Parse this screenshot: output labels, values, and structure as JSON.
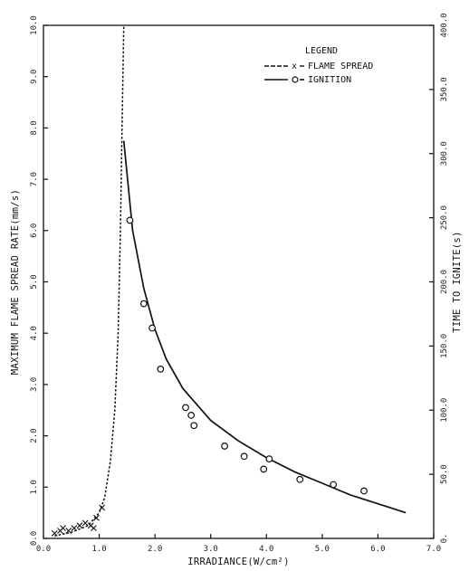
{
  "chart_data": {
    "type": "line",
    "xlabel": "IRRADIANCE(W/cm²)",
    "ylabel": "MAXIMUM FLAME SPREAD RATE(mm/s)",
    "y2label": "TIME TO IGNITE(s)",
    "xlim": [
      0,
      7.0
    ],
    "ylim": [
      0,
      10.0
    ],
    "y2lim": [
      0,
      400.0
    ],
    "x_ticks": [
      "0.0",
      "1.0",
      "2.0",
      "3.0",
      "4.0",
      "5.0",
      "6.0",
      "7.0"
    ],
    "y_ticks": [
      "0.0",
      "1.0",
      "2.0",
      "3.0",
      "4.0",
      "5.0",
      "6.0",
      "7.0",
      "8.0",
      "9.0",
      "10.0"
    ],
    "y2_ticks": [
      "0.",
      "50.0",
      "100.0",
      "150.0",
      "200.0",
      "250.0",
      "300.0",
      "350.0",
      "400.0"
    ],
    "grid": false,
    "legend": {
      "title": "LEGEND",
      "placement": "top-right",
      "entries": [
        "FLAME SPREAD",
        "IGNITION"
      ]
    },
    "series": [
      {
        "name": "FLAME SPREAD",
        "axis": "left",
        "marker": "x",
        "style": "dashed",
        "points": [
          {
            "x": 0.2,
            "y": 0.1
          },
          {
            "x": 0.3,
            "y": 0.15
          },
          {
            "x": 0.35,
            "y": 0.2
          },
          {
            "x": 0.45,
            "y": 0.15
          },
          {
            "x": 0.55,
            "y": 0.2
          },
          {
            "x": 0.65,
            "y": 0.25
          },
          {
            "x": 0.75,
            "y": 0.3
          },
          {
            "x": 0.85,
            "y": 0.25
          },
          {
            "x": 0.9,
            "y": 0.2
          },
          {
            "x": 0.95,
            "y": 0.4
          },
          {
            "x": 1.05,
            "y": 0.6
          }
        ],
        "curve": [
          {
            "x": 0.2,
            "y": 0.05
          },
          {
            "x": 0.5,
            "y": 0.12
          },
          {
            "x": 0.8,
            "y": 0.25
          },
          {
            "x": 1.0,
            "y": 0.5
          },
          {
            "x": 1.1,
            "y": 0.8
          },
          {
            "x": 1.2,
            "y": 1.5
          },
          {
            "x": 1.28,
            "y": 2.5
          },
          {
            "x": 1.34,
            "y": 4.0
          },
          {
            "x": 1.38,
            "y": 6.0
          },
          {
            "x": 1.41,
            "y": 8.0
          },
          {
            "x": 1.44,
            "y": 10.0
          }
        ]
      },
      {
        "name": "IGNITION",
        "axis": "right",
        "marker": "circle",
        "style": "solid",
        "points": [
          {
            "x": 1.55,
            "y": 248
          },
          {
            "x": 1.8,
            "y": 183
          },
          {
            "x": 1.95,
            "y": 164
          },
          {
            "x": 2.1,
            "y": 132
          },
          {
            "x": 2.55,
            "y": 102
          },
          {
            "x": 2.65,
            "y": 96
          },
          {
            "x": 2.7,
            "y": 88
          },
          {
            "x": 3.25,
            "y": 72
          },
          {
            "x": 3.6,
            "y": 64
          },
          {
            "x": 3.95,
            "y": 54
          },
          {
            "x": 4.05,
            "y": 62
          },
          {
            "x": 4.6,
            "y": 46
          },
          {
            "x": 5.2,
            "y": 42
          },
          {
            "x": 5.75,
            "y": 37
          }
        ],
        "curve": [
          {
            "x": 1.44,
            "y": 310
          },
          {
            "x": 1.6,
            "y": 240
          },
          {
            "x": 1.8,
            "y": 195
          },
          {
            "x": 2.0,
            "y": 163
          },
          {
            "x": 2.2,
            "y": 140
          },
          {
            "x": 2.5,
            "y": 117
          },
          {
            "x": 3.0,
            "y": 92
          },
          {
            "x": 3.5,
            "y": 76
          },
          {
            "x": 4.0,
            "y": 63
          },
          {
            "x": 4.5,
            "y": 52
          },
          {
            "x": 5.0,
            "y": 43
          },
          {
            "x": 5.5,
            "y": 34
          },
          {
            "x": 6.0,
            "y": 27
          },
          {
            "x": 6.5,
            "y": 20
          }
        ]
      }
    ]
  }
}
